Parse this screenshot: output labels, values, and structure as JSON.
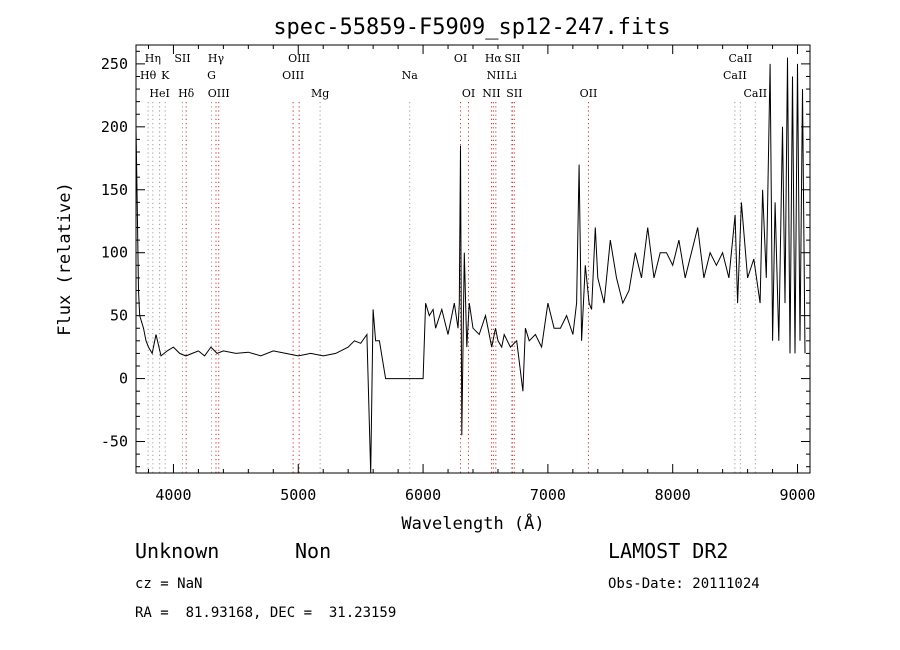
{
  "chart_data": {
    "type": "line",
    "title": "spec-55859-F5909_sp12-247.fits",
    "xlabel": "Wavelength (Å)",
    "ylabel": "Flux (relative)",
    "xlim": [
      3700,
      9100
    ],
    "ylim": [
      -75,
      265
    ],
    "xticks": [
      4000,
      5000,
      6000,
      7000,
      8000,
      9000
    ],
    "yticks": [
      -50,
      0,
      50,
      100,
      150,
      200,
      250
    ],
    "grid": false,
    "series": [
      {
        "color": "#000000",
        "x": [
          3700,
          3710,
          3720,
          3730,
          3745,
          3760,
          3780,
          3800,
          3830,
          3860,
          3900,
          3950,
          4000,
          4050,
          4100,
          4150,
          4200,
          4250,
          4300,
          4350,
          4400,
          4500,
          4600,
          4700,
          4800,
          4900,
          5000,
          5100,
          5200,
          5300,
          5400,
          5450,
          5500,
          5550,
          5580,
          5600,
          5620,
          5650,
          5700,
          5800,
          5900,
          6000,
          6020,
          6050,
          6080,
          6100,
          6150,
          6200,
          6250,
          6280,
          6290,
          6300,
          6310,
          6330,
          6350,
          6370,
          6400,
          6450,
          6500,
          6550,
          6580,
          6600,
          6630,
          6650,
          6700,
          6750,
          6800,
          6820,
          6850,
          6900,
          6950,
          7000,
          7050,
          7100,
          7150,
          7200,
          7230,
          7250,
          7270,
          7300,
          7330,
          7350,
          7380,
          7400,
          7450,
          7500,
          7550,
          7600,
          7650,
          7700,
          7750,
          7800,
          7850,
          7900,
          7950,
          8000,
          8050,
          8100,
          8150,
          8200,
          8250,
          8300,
          8350,
          8400,
          8450,
          8500,
          8520,
          8550,
          8600,
          8650,
          8700,
          8720,
          8750,
          8780,
          8800,
          8820,
          8850,
          8880,
          8900,
          8920,
          8940,
          8960,
          8980,
          9000,
          9020,
          9040,
          9060
        ],
        "y": [
          200,
          140,
          70,
          50,
          45,
          40,
          30,
          25,
          20,
          35,
          18,
          22,
          25,
          20,
          18,
          20,
          22,
          18,
          25,
          20,
          22,
          20,
          21,
          18,
          22,
          20,
          18,
          20,
          18,
          20,
          25,
          30,
          28,
          35,
          -75,
          55,
          30,
          30,
          0,
          0,
          0,
          0,
          60,
          50,
          55,
          40,
          55,
          35,
          60,
          40,
          60,
          185,
          -45,
          100,
          25,
          60,
          40,
          35,
          50,
          25,
          40,
          30,
          25,
          35,
          25,
          30,
          -10,
          40,
          30,
          35,
          25,
          60,
          40,
          40,
          50,
          35,
          60,
          170,
          30,
          90,
          60,
          55,
          120,
          80,
          60,
          110,
          80,
          60,
          70,
          100,
          80,
          120,
          80,
          100,
          100,
          90,
          110,
          80,
          100,
          120,
          80,
          100,
          90,
          100,
          80,
          130,
          60,
          140,
          80,
          95,
          60,
          150,
          80,
          250,
          30,
          140,
          30,
          200,
          60,
          255,
          20,
          240,
          20,
          250,
          30,
          230,
          20
        ]
      }
    ],
    "spectral_lines": [
      {
        "label": "Hη",
        "x": 3835,
        "row": 1,
        "color": "#9b9b9b"
      },
      {
        "label": "Hθ",
        "x": 3797,
        "row": 2,
        "color": "#9b9b9b"
      },
      {
        "label": "K",
        "x": 3934,
        "row": 2,
        "color": "#9b9b9b"
      },
      {
        "label": "HeI",
        "x": 3889,
        "row": 3,
        "color": "#9b9b9b"
      },
      {
        "label": "SII",
        "x": 4072,
        "row": 1,
        "color": "#9b9b9b"
      },
      {
        "label": "Hδ",
        "x": 4102,
        "row": 3,
        "color": "#c8322d"
      },
      {
        "label": "Hγ",
        "x": 4341,
        "row": 1,
        "color": "#c8322d"
      },
      {
        "label": "G",
        "x": 4305,
        "row": 2,
        "color": "#9b9b9b"
      },
      {
        "label": "OIII",
        "x": 4363,
        "row": 3,
        "color": "#c8322d"
      },
      {
        "label": "OIII",
        "x": 5007,
        "row": 1,
        "color": "#c8322d"
      },
      {
        "label": "OIII",
        "x": 4959,
        "row": 2,
        "color": "#c8322d"
      },
      {
        "label": "Mg",
        "x": 5175,
        "row": 3,
        "color": "#9b9b9b"
      },
      {
        "label": "Na",
        "x": 5893,
        "row": 2,
        "color": "#9b9b9b"
      },
      {
        "label": "OI",
        "x": 6300,
        "row": 1,
        "color": "#c8322d"
      },
      {
        "label": "OI",
        "x": 6364,
        "row": 3,
        "color": "#c8322d"
      },
      {
        "label": "Hα",
        "x": 6563,
        "row": 1,
        "color": "#c8322d"
      },
      {
        "label": "SII",
        "x": 6716,
        "row": 1,
        "color": "#c8322d"
      },
      {
        "label": "NII",
        "x": 6583,
        "row": 2,
        "color": "#c8322d"
      },
      {
        "label": "Li",
        "x": 6708,
        "row": 2,
        "color": "#9b9b9b"
      },
      {
        "label": "NII",
        "x": 6548,
        "row": 3,
        "color": "#c8322d"
      },
      {
        "label": "SII",
        "x": 6731,
        "row": 3,
        "color": "#c8322d"
      },
      {
        "label": "OII",
        "x": 7325,
        "row": 3,
        "color": "#c8322d"
      },
      {
        "label": "CaII",
        "x": 8542,
        "row": 1,
        "color": "#9b9b9b"
      },
      {
        "label": "CaII",
        "x": 8498,
        "row": 2,
        "color": "#9b9b9b"
      },
      {
        "label": "CaII",
        "x": 8662,
        "row": 3,
        "color": "#9b9b9b"
      }
    ]
  },
  "info": {
    "class": "Unknown",
    "subclass": "Non",
    "survey": "LAMOST DR2",
    "cz": "cz = NaN",
    "obs_date": "Obs-Date: 20111024",
    "radec": "RA =  81.93168, DEC =  31.23159"
  }
}
